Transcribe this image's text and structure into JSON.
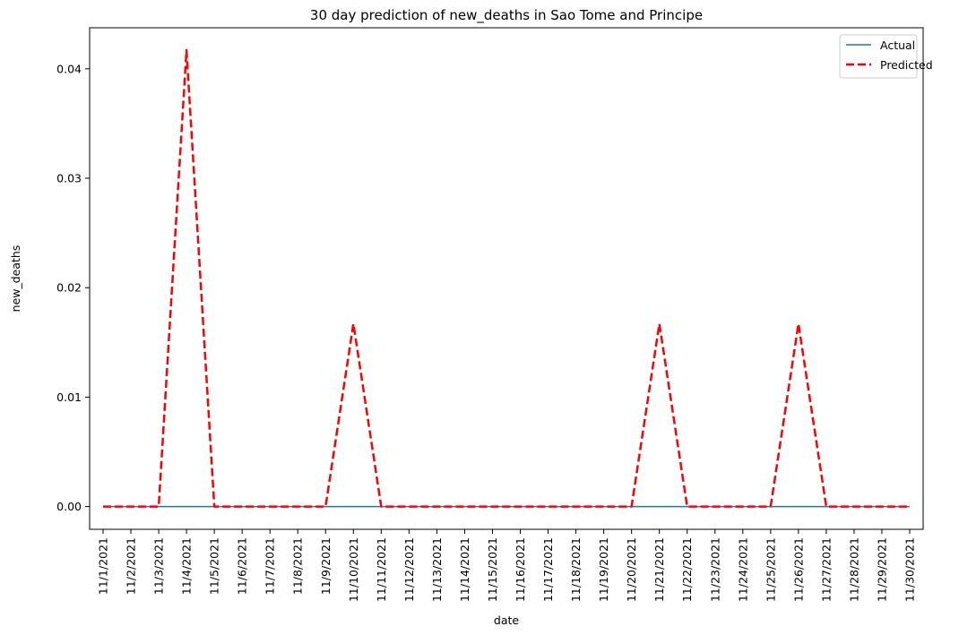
{
  "chart_data": {
    "type": "line",
    "title": "30 day prediction of new_deaths in Sao Tome and Principe",
    "xlabel": "date",
    "ylabel": "new_deaths",
    "x": [
      "11/1/2021",
      "11/2/2021",
      "11/3/2021",
      "11/4/2021",
      "11/5/2021",
      "11/6/2021",
      "11/7/2021",
      "11/8/2021",
      "11/9/2021",
      "11/10/2021",
      "11/11/2021",
      "11/12/2021",
      "11/13/2021",
      "11/14/2021",
      "11/15/2021",
      "11/16/2021",
      "11/17/2021",
      "11/18/2021",
      "11/19/2021",
      "11/20/2021",
      "11/21/2021",
      "11/22/2021",
      "11/23/2021",
      "11/24/2021",
      "11/25/2021",
      "11/26/2021",
      "11/27/2021",
      "11/28/2021",
      "11/29/2021",
      "11/30/2021"
    ],
    "series": [
      {
        "name": "Actual",
        "color": "#1f77b4",
        "style": "solid",
        "values": [
          0,
          0,
          0,
          0,
          0,
          0,
          0,
          0,
          0,
          0,
          0,
          0,
          0,
          0,
          0,
          0,
          0,
          0,
          0,
          0,
          0,
          0,
          0,
          0,
          0,
          0,
          0,
          0,
          0,
          0
        ]
      },
      {
        "name": "Predicted",
        "color": "#ff0000",
        "style": "dashed",
        "values": [
          0,
          0,
          0,
          0.0417,
          0,
          0,
          0,
          0,
          0,
          0.0167,
          0,
          0,
          0,
          0,
          0,
          0,
          0,
          0,
          0,
          0,
          0.0167,
          0,
          0,
          0,
          0,
          0.0167,
          0,
          0,
          0,
          0
        ]
      }
    ],
    "yticks": [
      0.0,
      0.01,
      0.02,
      0.03,
      0.04
    ],
    "ytick_labels": [
      "0.00",
      "0.01",
      "0.02",
      "0.03",
      "0.04"
    ],
    "ylim": [
      -0.00208,
      0.04375
    ],
    "legend_position": "top-right",
    "grid": false
  }
}
